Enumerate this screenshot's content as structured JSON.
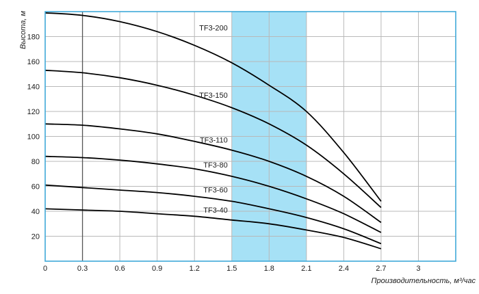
{
  "chart_data": {
    "type": "line",
    "title": "",
    "xlabel": "Производительность, м³/час",
    "ylabel": "Высота, м",
    "xlim": [
      0,
      3.3
    ],
    "ylim": [
      0,
      200
    ],
    "x_ticks": [
      0,
      0.3,
      0.6,
      0.9,
      1.2,
      1.5,
      1.8,
      2.1,
      2.4,
      2.7,
      3
    ],
    "x_tick_labels": [
      "0",
      "0.3",
      "0.6",
      "0.9",
      "1.2",
      "1.5",
      "1.8",
      "2.1",
      "2.4",
      "2.7",
      "3"
    ],
    "y_ticks": [
      20,
      40,
      60,
      80,
      100,
      120,
      140,
      160,
      180
    ],
    "y_tick_labels": [
      "20",
      "40",
      "60",
      "80",
      "100",
      "120",
      "140",
      "160",
      "180"
    ],
    "grid": true,
    "highlight_range": {
      "x_from": 1.5,
      "x_to": 2.1
    },
    "colors": {
      "grid": "#b8b8b8",
      "frame": "#3fa9d8",
      "highlight": "#a6e1f6",
      "series": "#000000",
      "axis_line": "#555555"
    },
    "series": [
      {
        "name": "TF3-200",
        "label_at": [
          1.5,
          185
        ],
        "x": [
          0,
          0.3,
          0.6,
          0.9,
          1.2,
          1.5,
          1.8,
          2.1,
          2.4,
          2.7
        ],
        "y": [
          199,
          197,
          192,
          184,
          173,
          159,
          141,
          120,
          87,
          48
        ]
      },
      {
        "name": "TF3-150",
        "label_at": [
          1.5,
          131
        ],
        "x": [
          0,
          0.3,
          0.6,
          0.9,
          1.2,
          1.5,
          1.8,
          2.1,
          2.4,
          2.7
        ],
        "y": [
          153,
          151,
          147,
          141,
          133,
          123,
          110,
          93,
          70,
          43
        ]
      },
      {
        "name": "TF3-110",
        "label_at": [
          1.5,
          95
        ],
        "x": [
          0,
          0.3,
          0.6,
          0.9,
          1.2,
          1.5,
          1.8,
          2.1,
          2.4,
          2.7
        ],
        "y": [
          110,
          109,
          106,
          102,
          96,
          89,
          80,
          68,
          52,
          31
        ]
      },
      {
        "name": "TF3-80",
        "label_at": [
          1.5,
          75
        ],
        "x": [
          0,
          0.3,
          0.6,
          0.9,
          1.2,
          1.5,
          1.8,
          2.1,
          2.4,
          2.7
        ],
        "y": [
          84,
          83,
          81,
          78,
          74,
          68,
          60,
          50,
          38,
          23
        ]
      },
      {
        "name": "TF3-60",
        "label_at": [
          1.5,
          55
        ],
        "x": [
          0,
          0.3,
          0.6,
          0.9,
          1.2,
          1.5,
          1.8,
          2.1,
          2.4,
          2.7
        ],
        "y": [
          61,
          59,
          57,
          55,
          52,
          48,
          42,
          35,
          26,
          14
        ]
      },
      {
        "name": "TF3-40",
        "label_at": [
          1.5,
          39
        ],
        "x": [
          0,
          0.3,
          0.6,
          0.9,
          1.2,
          1.5,
          1.8,
          2.1,
          2.4,
          2.7
        ],
        "y": [
          42,
          41,
          40,
          38,
          36,
          33,
          30,
          25,
          19,
          10
        ]
      }
    ]
  }
}
